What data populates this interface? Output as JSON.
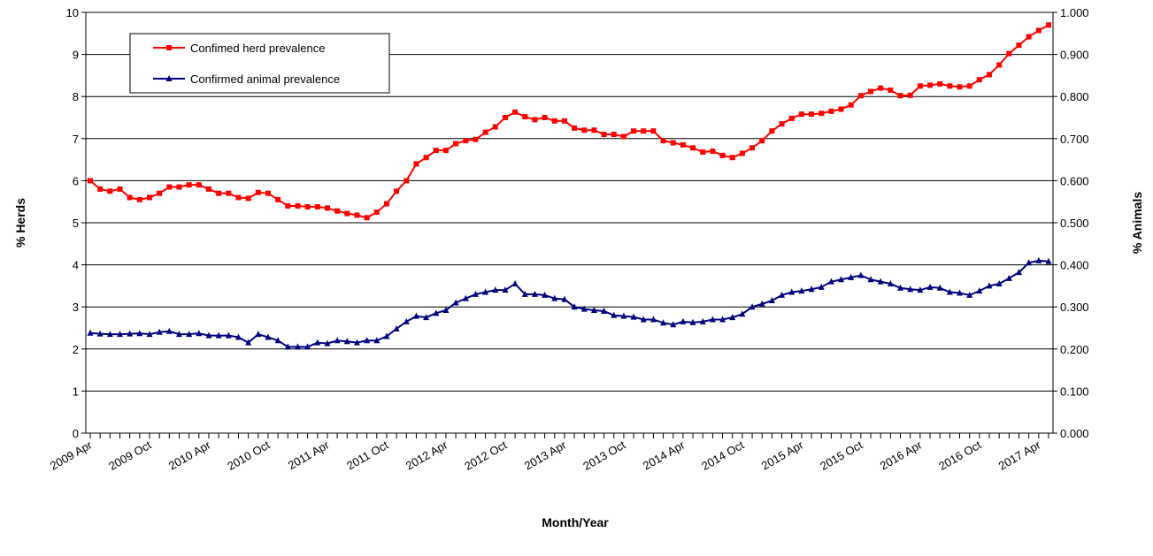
{
  "chart_data": {
    "type": "line",
    "xlabel": "Month/Year",
    "ylabel": "% Herds",
    "y2label": "% Animals",
    "categories": [
      "2009 Apr",
      null,
      null,
      null,
      null,
      null,
      "2009 Oct",
      null,
      null,
      null,
      null,
      null,
      "2010 Apr",
      null,
      null,
      null,
      null,
      null,
      "2010 Oct",
      null,
      null,
      null,
      null,
      null,
      "2011 Apr",
      null,
      null,
      null,
      null,
      null,
      "2011 Oct",
      null,
      null,
      null,
      null,
      null,
      "2012 Apr",
      null,
      null,
      null,
      null,
      null,
      "2012 Oct",
      null,
      null,
      null,
      null,
      null,
      "2013 Apr",
      null,
      null,
      null,
      null,
      null,
      "2013 Oct",
      null,
      null,
      null,
      null,
      null,
      "2014 Apr",
      null,
      null,
      null,
      null,
      null,
      "2014 Oct",
      null,
      null,
      null,
      null,
      null,
      "2015 Apr",
      null,
      null,
      null,
      null,
      null,
      "2015 Oct",
      null,
      null,
      null,
      null,
      null,
      "2016 Apr",
      null,
      null,
      null,
      null,
      null,
      "2016 Oct",
      null,
      null,
      null,
      null,
      null,
      "2017 Apr",
      null
    ],
    "series": [
      {
        "name": "Confimed herd prevalence",
        "color": "#ff0000",
        "marker": "square",
        "values": [
          6.0,
          5.8,
          5.75,
          5.8,
          5.6,
          5.55,
          5.6,
          5.7,
          5.85,
          5.85,
          5.9,
          5.9,
          5.8,
          5.7,
          5.7,
          5.6,
          5.58,
          5.72,
          5.7,
          5.55,
          5.4,
          5.4,
          5.38,
          5.38,
          5.35,
          5.28,
          5.22,
          5.18,
          5.12,
          5.25,
          5.45,
          5.75,
          6.0,
          6.4,
          6.55,
          6.72,
          6.72,
          6.88,
          6.95,
          6.98,
          7.15,
          7.28,
          7.5,
          7.63,
          7.52,
          7.45,
          7.5,
          7.42,
          7.42,
          7.25,
          7.2,
          7.2,
          7.1,
          7.1,
          7.05,
          7.18,
          7.18,
          7.18,
          6.95,
          6.9,
          6.85,
          6.78,
          6.68,
          6.7,
          6.6,
          6.55,
          6.65,
          6.78,
          6.95,
          7.18,
          7.35,
          7.48,
          7.58,
          7.58,
          7.6,
          7.65,
          7.7,
          7.8,
          8.02,
          8.12,
          8.2,
          8.15,
          8.02,
          8.03,
          8.25,
          8.27,
          8.3,
          8.25,
          8.23,
          8.25,
          8.4,
          8.52,
          8.75,
          9.02,
          9.22,
          9.42,
          9.57,
          9.7
        ]
      },
      {
        "name": "Confirmed animal prevalence",
        "color": "#000080",
        "marker": "triangle",
        "axis": "y2",
        "values": [
          0.238,
          0.236,
          0.235,
          0.235,
          0.236,
          0.237,
          0.235,
          0.24,
          0.242,
          0.235,
          0.235,
          0.237,
          0.232,
          0.232,
          0.232,
          0.228,
          0.215,
          0.235,
          0.228,
          0.22,
          0.205,
          0.205,
          0.205,
          0.215,
          0.213,
          0.22,
          0.218,
          0.215,
          0.22,
          0.22,
          0.23,
          0.248,
          0.265,
          0.278,
          0.275,
          0.285,
          0.292,
          0.31,
          0.32,
          0.33,
          0.335,
          0.34,
          0.34,
          0.355,
          0.33,
          0.33,
          0.328,
          0.32,
          0.318,
          0.3,
          0.295,
          0.292,
          0.29,
          0.28,
          0.278,
          0.276,
          0.27,
          0.27,
          0.262,
          0.258,
          0.265,
          0.263,
          0.265,
          0.27,
          0.27,
          0.275,
          0.283,
          0.3,
          0.307,
          0.315,
          0.328,
          0.335,
          0.338,
          0.342,
          0.347,
          0.36,
          0.365,
          0.37,
          0.375,
          0.365,
          0.36,
          0.355,
          0.345,
          0.342,
          0.34,
          0.347,
          0.345,
          0.335,
          0.333,
          0.328,
          0.338,
          0.35,
          0.355,
          0.368,
          0.382,
          0.405,
          0.41,
          0.408
        ]
      }
    ],
    "ylim": [
      0,
      10
    ],
    "yticks": [
      0,
      1,
      2,
      3,
      4,
      5,
      6,
      7,
      8,
      9,
      10
    ],
    "y2lim": [
      0,
      1
    ],
    "y2ticks": [
      {
        "value": 0,
        "label": "0.000"
      },
      {
        "value": 0.1,
        "label": "0.100"
      },
      {
        "value": 0.2,
        "label": "0.200"
      },
      {
        "value": 0.3,
        "label": "0.300"
      },
      {
        "value": 0.4,
        "label": "0.400"
      },
      {
        "value": 0.5,
        "label": "0.500"
      },
      {
        "value": 0.6,
        "label": "0.600"
      },
      {
        "value": 0.7,
        "label": "0.700"
      },
      {
        "value": 0.8,
        "label": "0.800"
      },
      {
        "value": 0.9,
        "label": "0.900"
      },
      {
        "value": 1,
        "label": "1.000"
      }
    ],
    "grid": true,
    "legend": "upper left"
  }
}
